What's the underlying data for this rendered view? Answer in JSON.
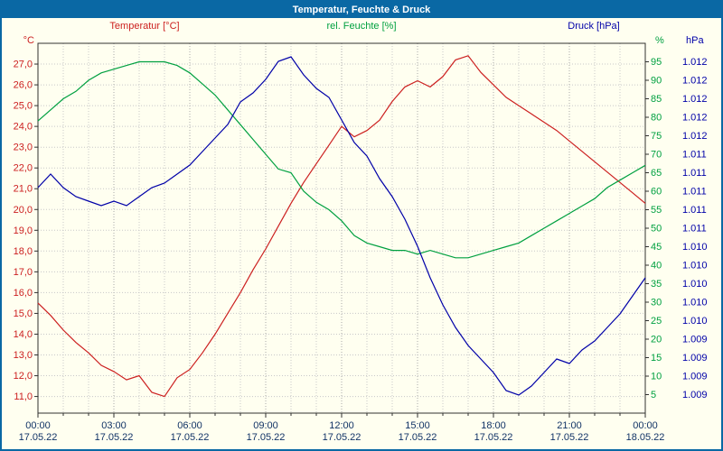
{
  "window": {
    "title": "Temperatur, Feuchte & Druck"
  },
  "colors": {
    "titlebar_bg": "#0a68a4",
    "window_bg": "#fffff0",
    "frame": "#303030",
    "grid_minor": "#c8c8c8",
    "grid_major": "#a8a8a8",
    "axis_text": "#113366",
    "temperature": "#cc2020",
    "humidity": "#00a040",
    "pressure": "#0000a8"
  },
  "chart_data": {
    "type": "line",
    "title": "Temperatur, Feuchte & Druck",
    "grid": true,
    "x_unit": "hours",
    "x_range": [
      0,
      24
    ],
    "x_minor_step": 1,
    "x_major_ticks": [
      0,
      3,
      6,
      9,
      12,
      15,
      18,
      21,
      24
    ],
    "x_major_labels": [
      "00:00",
      "03:00",
      "06:00",
      "09:00",
      "12:00",
      "15:00",
      "18:00",
      "21:00",
      "00:00"
    ],
    "x_date_labels": [
      "17.05.22",
      "17.05.22",
      "17.05.22",
      "17.05.22",
      "17.05.22",
      "17.05.22",
      "17.05.22",
      "17.05.22",
      "18.05.22"
    ],
    "x": [
      0,
      0.5,
      1,
      1.5,
      2,
      2.5,
      3,
      3.5,
      4,
      4.5,
      5,
      5.5,
      6,
      6.5,
      7,
      7.5,
      8,
      8.5,
      9,
      9.5,
      10,
      10.5,
      11,
      11.5,
      12,
      12.5,
      13,
      13.5,
      14,
      14.5,
      15,
      15.5,
      16,
      16.5,
      17,
      17.5,
      18,
      18.5,
      19,
      19.5,
      20,
      20.5,
      21,
      21.5,
      22,
      22.5,
      23,
      23.5,
      24
    ],
    "series": [
      {
        "key": "temperature",
        "label": "Temperatur [°C]",
        "unit": "°C",
        "color": "#cc2020",
        "axis": {
          "side": "left",
          "min": 10.2,
          "max": 28.0,
          "ticks": [
            27,
            26,
            25,
            24,
            23,
            22,
            21,
            20,
            19,
            18,
            17,
            16,
            15,
            14,
            13,
            12,
            11
          ],
          "tick_labels": [
            "27,0",
            "26,0",
            "25,0",
            "24,0",
            "23,0",
            "22,0",
            "21,0",
            "20,0",
            "19,0",
            "18,0",
            "17,0",
            "16,0",
            "15,0",
            "14,0",
            "13,0",
            "12,0",
            "11,0"
          ]
        },
        "values": [
          15.5,
          14.9,
          14.2,
          13.6,
          13.1,
          12.5,
          12.2,
          11.8,
          12.0,
          11.2,
          11.0,
          11.9,
          12.3,
          13.1,
          14.0,
          15.0,
          16.0,
          17.1,
          18.1,
          19.2,
          20.3,
          21.3,
          22.2,
          23.1,
          24.0,
          23.5,
          23.8,
          24.3,
          25.2,
          25.9,
          26.2,
          25.9,
          26.4,
          27.2,
          27.4,
          26.6,
          26.0,
          25.4,
          25.0,
          24.6,
          24.2,
          23.8,
          23.3,
          22.8,
          22.3,
          21.8,
          21.3,
          20.8,
          20.3
        ]
      },
      {
        "key": "humidity",
        "label": "rel. Feuchte [%]",
        "unit": "%",
        "color": "#00a040",
        "axis": {
          "side": "right-inner",
          "min": 0,
          "max": 100,
          "ticks": [
            95,
            90,
            85,
            80,
            75,
            70,
            65,
            60,
            55,
            50,
            45,
            40,
            35,
            30,
            25,
            20,
            15,
            10,
            5
          ],
          "tick_labels": [
            "95",
            "90",
            "85",
            "80",
            "75",
            "70",
            "65",
            "60",
            "55",
            "50",
            "45",
            "40",
            "35",
            "30",
            "25",
            "20",
            "15",
            "10",
            "5"
          ]
        },
        "values": [
          79,
          82,
          85,
          87,
          90,
          92,
          93,
          94,
          95,
          95,
          95,
          94,
          92,
          89,
          86,
          82,
          78,
          74,
          70,
          66,
          65,
          60,
          57,
          55,
          52,
          48,
          46,
          45,
          44,
          44,
          43,
          44,
          43,
          42,
          42,
          43,
          44,
          45,
          46,
          48,
          50,
          52,
          54,
          56,
          58,
          61,
          63,
          65,
          67
        ]
      },
      {
        "key": "pressure",
        "label": "Druck [hPa]",
        "unit": "hPa",
        "color": "#0000a8",
        "axis": {
          "side": "right-outer",
          "min": 1009.0,
          "max": 1013.1,
          "tick_positions_pct": [
            95,
            90,
            85,
            80,
            75,
            70,
            65,
            60,
            55,
            50,
            45,
            40,
            35,
            30,
            25,
            20,
            15,
            10,
            5
          ],
          "tick_labels": [
            "1.012",
            "1.012",
            "1.012",
            "1.012",
            "1.012",
            "1.011",
            "1.011",
            "1.011",
            "1.011",
            "1.011",
            "1.010",
            "1.010",
            "1.010",
            "1.010",
            "1.010",
            "1.009",
            "1.009",
            "1.009",
            "1.009"
          ]
        },
        "values": [
          1011.5,
          1011.65,
          1011.5,
          1011.4,
          1011.35,
          1011.3,
          1011.35,
          1011.3,
          1011.4,
          1011.5,
          1011.55,
          1011.65,
          1011.75,
          1011.9,
          1012.05,
          1012.2,
          1012.45,
          1012.55,
          1012.7,
          1012.9,
          1012.95,
          1012.75,
          1012.6,
          1012.5,
          1012.25,
          1012.0,
          1011.85,
          1011.6,
          1011.4,
          1011.15,
          1010.85,
          1010.5,
          1010.2,
          1009.95,
          1009.75,
          1009.6,
          1009.45,
          1009.25,
          1009.2,
          1009.3,
          1009.45,
          1009.6,
          1009.55,
          1009.7,
          1009.8,
          1009.95,
          1010.1,
          1010.3,
          1010.5
        ]
      }
    ]
  }
}
